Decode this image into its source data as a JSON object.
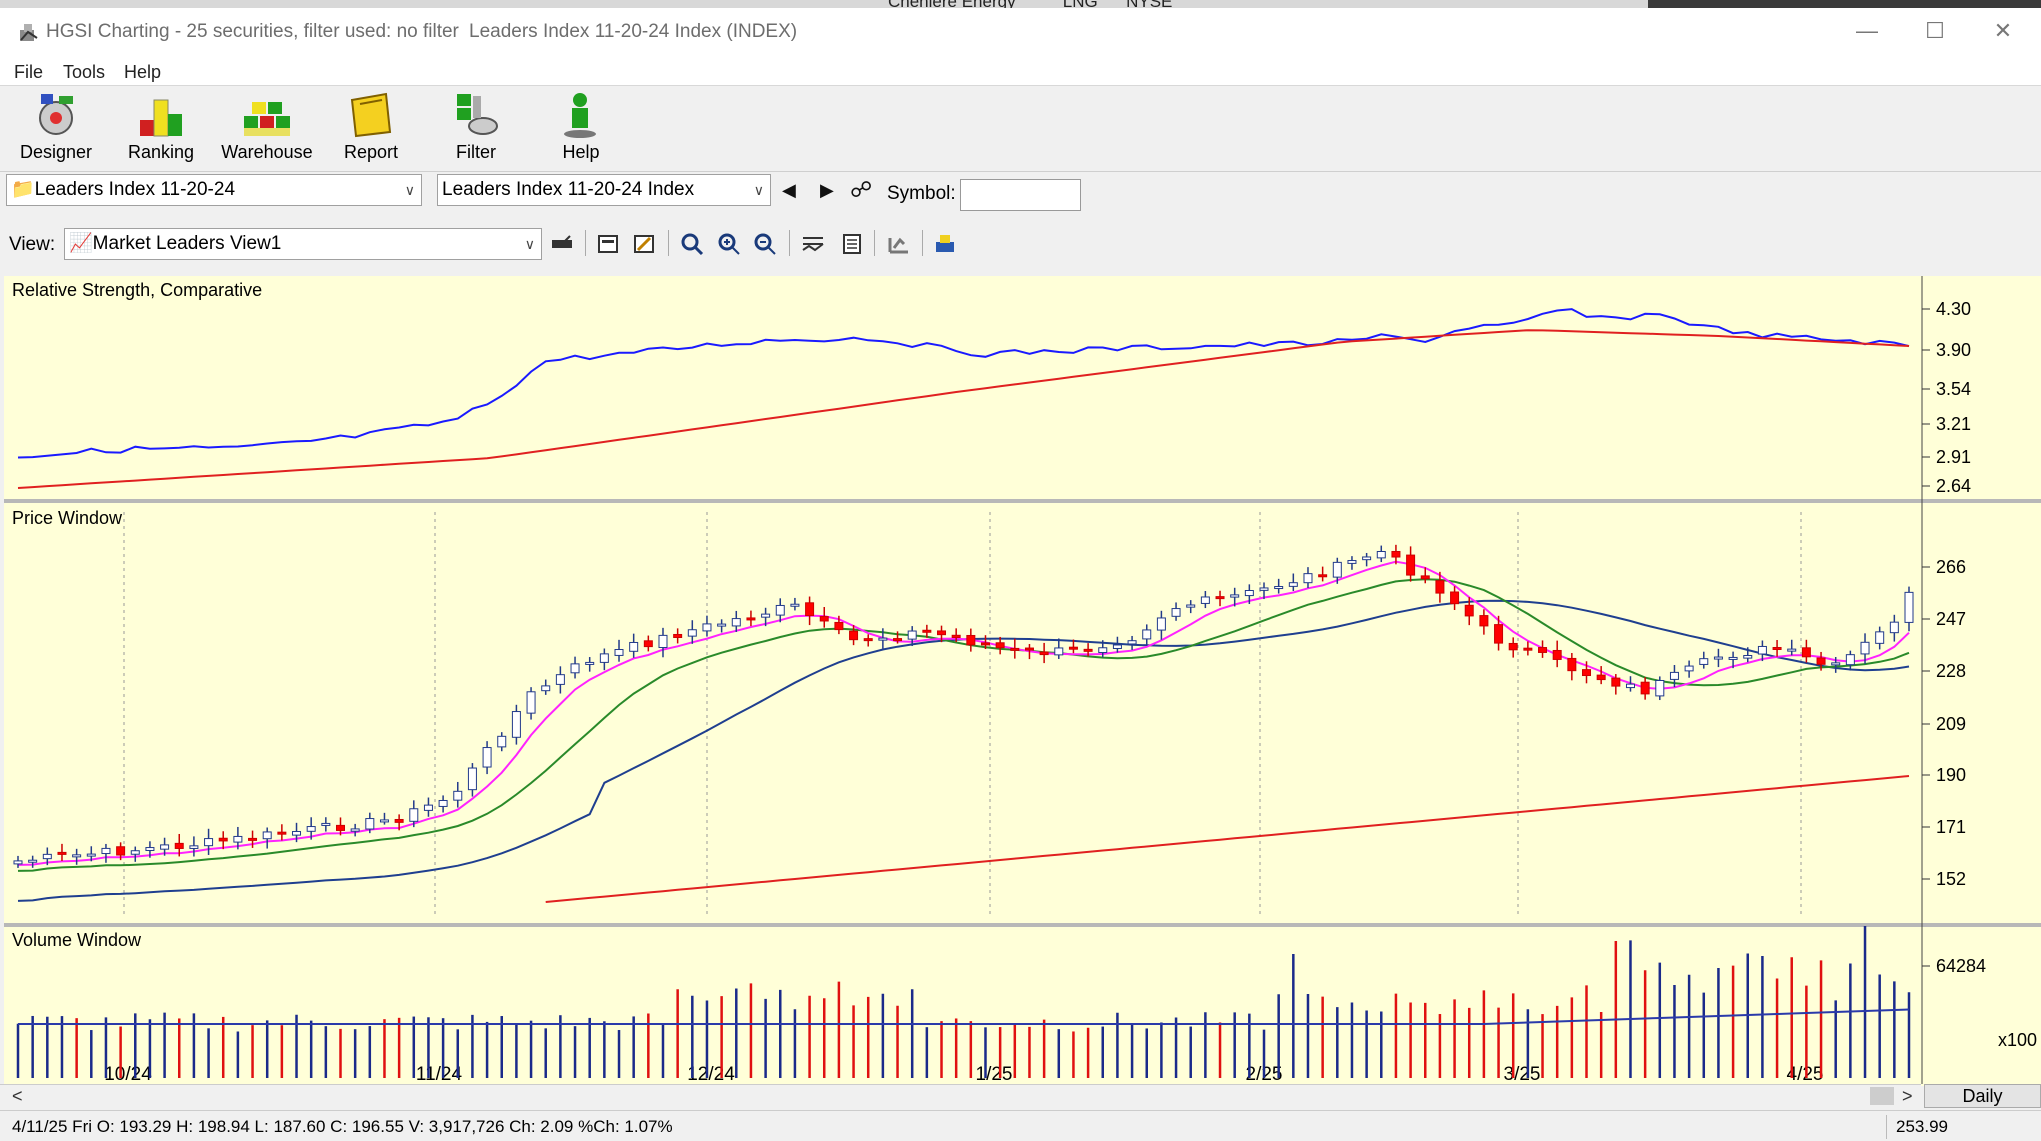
{
  "background": {
    "peek_text": "Cheniere Energy          LNG      NYSE"
  },
  "window": {
    "title_app": "HGSI Charting - 25 securities, filter used: no filter",
    "title_doc": "Leaders Index 11-20-24 Index (INDEX)"
  },
  "menu": [
    "File",
    "Tools",
    "Help"
  ],
  "toolbar": [
    {
      "label": "Designer",
      "icon": "designer-icon"
    },
    {
      "label": "Ranking",
      "icon": "ranking-icon"
    },
    {
      "label": "Warehouse",
      "icon": "warehouse-icon"
    },
    {
      "label": "Report",
      "icon": "report-icon"
    },
    {
      "label": "Filter",
      "icon": "filter-icon"
    },
    {
      "label": "Help",
      "icon": "help-icon"
    }
  ],
  "selectors": {
    "list_value": "Leaders Index 11-20-24",
    "security_value": "Leaders Index 11-20-24 Index",
    "symbol_label": "Symbol:",
    "symbol_value": ""
  },
  "view": {
    "label": "View:",
    "value": "Market Leaders View1"
  },
  "chart_data": [
    {
      "type": "line",
      "title": "Relative Strength, Comparative",
      "y_ticks": [
        "4.30",
        "3.90",
        "3.54",
        "3.21",
        "2.91",
        "2.64"
      ],
      "series_colors": [
        "#1a1aff",
        "#e02020"
      ]
    },
    {
      "type": "candlestick",
      "title": "Price Window",
      "y_ticks": [
        "266",
        "247",
        "228",
        "209",
        "190",
        "171",
        "152"
      ],
      "ma_colors": [
        "#ff22ff",
        "#2a8a2a",
        "#1f3f8f",
        "#e02020"
      ],
      "up_color": "#ffffff",
      "down_color": "#ff0000"
    },
    {
      "type": "bar",
      "title": "Volume Window",
      "y_ticks": [
        "64284"
      ],
      "unit": "x100"
    }
  ],
  "x_axis_labels": [
    "10/24",
    "11/24",
    "12/24",
    "1/25",
    "2/25",
    "3/25",
    "4/25"
  ],
  "period": "Daily",
  "status": {
    "bar_info": "4/11/25 Fri O: 193.29 H: 198.94 L: 187.60 C: 196.55 V: 3,917,726 Ch: 2.09 %Ch: 1.07%",
    "right_value": "253.99"
  }
}
